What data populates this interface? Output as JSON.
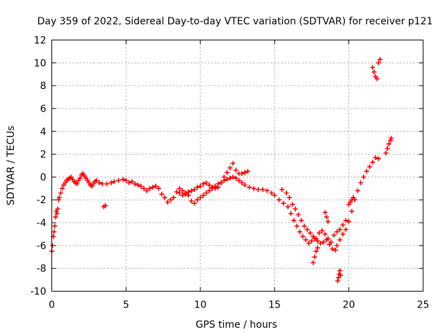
{
  "chart_data": {
    "type": "scatter",
    "title": "Day 359 of 2022, Sidereal Day-to-day VTEC variation (SDTVAR) for receiver p121",
    "xlabel": "GPS time / hours",
    "ylabel": "SDTVAR / TECUs",
    "xlim": [
      0,
      25
    ],
    "ylim": [
      -10,
      12
    ],
    "xticks": [
      0,
      5,
      10,
      15,
      20,
      25
    ],
    "yticks": [
      -10,
      -8,
      -6,
      -4,
      -2,
      0,
      2,
      4,
      6,
      8,
      10,
      12
    ],
    "grid": true,
    "marker": "+",
    "color": "#ff0000",
    "series": [
      {
        "name": "main trace",
        "points": [
          [
            0.0,
            -6.5
          ],
          [
            0.05,
            -6.0
          ],
          [
            0.1,
            -5.2
          ],
          [
            0.15,
            -4.8
          ],
          [
            0.2,
            -4.3
          ],
          [
            0.25,
            -3.5
          ],
          [
            0.3,
            -3.0
          ],
          [
            0.35,
            -3.2
          ],
          [
            0.4,
            -2.8
          ],
          [
            0.45,
            -2.0
          ],
          [
            0.5,
            -1.8
          ],
          [
            0.6,
            -1.4
          ],
          [
            0.7,
            -1.0
          ],
          [
            0.8,
            -0.7
          ],
          [
            0.9,
            -0.5
          ],
          [
            1.0,
            -0.3
          ],
          [
            1.1,
            -0.2
          ],
          [
            1.2,
            -0.1
          ],
          [
            1.3,
            0.0
          ],
          [
            1.4,
            -0.2
          ],
          [
            1.5,
            -0.4
          ],
          [
            1.6,
            -0.5
          ],
          [
            1.7,
            -0.6
          ],
          [
            1.8,
            -0.3
          ],
          [
            1.9,
            -0.1
          ],
          [
            2.0,
            0.2
          ],
          [
            2.1,
            0.3
          ],
          [
            2.2,
            0.1
          ],
          [
            2.3,
            -0.1
          ],
          [
            2.4,
            -0.3
          ],
          [
            2.5,
            -0.5
          ],
          [
            2.6,
            -0.7
          ],
          [
            2.7,
            -0.8
          ],
          [
            2.8,
            -0.6
          ],
          [
            2.9,
            -0.4
          ],
          [
            3.0,
            -0.3
          ],
          [
            3.2,
            -0.5
          ],
          [
            3.4,
            -0.6
          ],
          [
            3.5,
            -2.6
          ],
          [
            3.6,
            -2.5
          ],
          [
            3.7,
            -0.6
          ],
          [
            4.0,
            -0.5
          ],
          [
            4.2,
            -0.4
          ],
          [
            4.5,
            -0.3
          ],
          [
            4.8,
            -0.2
          ],
          [
            5.0,
            -0.3
          ],
          [
            5.2,
            -0.5
          ],
          [
            5.4,
            -0.4
          ],
          [
            5.6,
            -0.6
          ],
          [
            5.8,
            -0.7
          ],
          [
            6.0,
            -0.8
          ],
          [
            6.2,
            -1.0
          ],
          [
            6.4,
            -1.2
          ],
          [
            6.6,
            -1.0
          ],
          [
            6.8,
            -0.9
          ],
          [
            7.0,
            -0.8
          ],
          [
            7.2,
            -1.0
          ],
          [
            7.4,
            -1.5
          ],
          [
            7.6,
            -1.8
          ],
          [
            7.8,
            -2.2
          ],
          [
            8.0,
            -2.0
          ],
          [
            8.2,
            -1.8
          ],
          [
            8.4,
            -1.3
          ],
          [
            8.6,
            -1.0
          ],
          [
            8.8,
            -1.2
          ],
          [
            9.0,
            -1.4
          ],
          [
            9.2,
            -1.6
          ],
          [
            9.4,
            -2.1
          ],
          [
            9.6,
            -2.3
          ],
          [
            9.8,
            -2.0
          ],
          [
            10.0,
            -1.8
          ],
          [
            10.2,
            -1.6
          ],
          [
            10.4,
            -1.4
          ],
          [
            10.6,
            -1.2
          ],
          [
            10.8,
            -1.0
          ],
          [
            11.0,
            -0.8
          ],
          [
            11.2,
            -0.6
          ],
          [
            11.4,
            -0.5
          ],
          [
            11.6,
            -0.3
          ],
          [
            11.8,
            -0.2
          ],
          [
            12.0,
            -0.1
          ],
          [
            12.2,
            0.0
          ],
          [
            12.4,
            -0.1
          ],
          [
            12.6,
            -0.3
          ],
          [
            12.8,
            -0.5
          ],
          [
            13.0,
            -0.7
          ],
          [
            13.3,
            -0.9
          ],
          [
            13.6,
            -1.0
          ],
          [
            13.9,
            -1.1
          ],
          [
            14.2,
            -1.1
          ],
          [
            14.5,
            -1.2
          ],
          [
            14.8,
            -1.4
          ],
          [
            15.0,
            -1.6
          ],
          [
            15.3,
            -2.0
          ],
          [
            15.6,
            -2.3
          ],
          [
            15.9,
            -2.6
          ],
          [
            16.1,
            -3.2
          ],
          [
            16.3,
            -3.8
          ],
          [
            16.5,
            -4.3
          ],
          [
            16.7,
            -4.8
          ],
          [
            16.9,
            -5.2
          ],
          [
            17.1,
            -5.5
          ],
          [
            17.3,
            -5.8
          ],
          [
            17.5,
            -5.6
          ],
          [
            17.7,
            -5.4
          ],
          [
            17.9,
            -5.6
          ],
          [
            18.1,
            -5.8
          ],
          [
            18.3,
            -5.7
          ],
          [
            18.5,
            -5.5
          ],
          [
            18.7,
            -5.9
          ],
          [
            18.9,
            -6.3
          ],
          [
            19.1,
            -6.4
          ],
          [
            19.2,
            -6.0
          ],
          [
            19.4,
            -5.5
          ],
          [
            19.6,
            -5.0
          ],
          [
            19.8,
            -4.6
          ],
          [
            20.0,
            -3.9
          ],
          [
            20.2,
            -3.0
          ],
          [
            20.4,
            -2.0
          ],
          [
            20.6,
            -1.2
          ],
          [
            20.8,
            -0.5
          ],
          [
            21.0,
            0.0
          ],
          [
            21.2,
            0.5
          ],
          [
            21.4,
            0.9
          ],
          [
            21.6,
            1.3
          ],
          [
            21.8,
            1.7
          ],
          [
            22.0,
            1.6
          ]
        ]
      },
      {
        "name": "upper branch",
        "points": [
          [
            8.6,
            -1.4
          ],
          [
            8.8,
            -1.6
          ],
          [
            9.0,
            -1.5
          ],
          [
            9.2,
            -1.3
          ],
          [
            9.4,
            -1.2
          ],
          [
            9.6,
            -1.1
          ],
          [
            9.8,
            -0.9
          ],
          [
            10.0,
            -0.8
          ],
          [
            10.2,
            -0.6
          ],
          [
            10.4,
            -0.5
          ],
          [
            10.6,
            -0.7
          ],
          [
            10.8,
            -0.9
          ],
          [
            11.0,
            -1.0
          ],
          [
            11.2,
            -0.9
          ],
          [
            11.4,
            -0.5
          ],
          [
            11.6,
            0.0
          ],
          [
            11.8,
            0.4
          ],
          [
            12.0,
            0.8
          ],
          [
            12.2,
            1.2
          ],
          [
            12.4,
            0.6
          ],
          [
            12.6,
            0.3
          ],
          [
            12.8,
            0.3
          ],
          [
            13.0,
            0.4
          ],
          [
            13.2,
            0.5
          ]
        ]
      },
      {
        "name": "second descent",
        "points": [
          [
            15.5,
            -1.1
          ],
          [
            15.8,
            -1.4
          ],
          [
            16.0,
            -1.8
          ],
          [
            16.2,
            -2.4
          ],
          [
            16.4,
            -2.8
          ],
          [
            16.6,
            -3.3
          ],
          [
            16.8,
            -3.8
          ],
          [
            17.0,
            -4.3
          ],
          [
            17.2,
            -4.6
          ],
          [
            17.4,
            -4.9
          ],
          [
            17.6,
            -5.2
          ],
          [
            17.8,
            -5.4
          ],
          [
            18.0,
            -4.9
          ],
          [
            18.2,
            -4.7
          ],
          [
            18.4,
            -5.0
          ],
          [
            18.6,
            -5.4
          ],
          [
            18.8,
            -5.7
          ],
          [
            19.0,
            -5.1
          ],
          [
            19.2,
            -4.8
          ],
          [
            19.4,
            -4.6
          ],
          [
            19.6,
            -4.2
          ],
          [
            19.8,
            -3.8
          ]
        ]
      },
      {
        "name": "isolated segments",
        "points": [
          [
            17.6,
            -7.5
          ],
          [
            17.7,
            -7.0
          ],
          [
            17.8,
            -6.5
          ],
          [
            17.9,
            -6.2
          ],
          [
            18.4,
            -3.1
          ],
          [
            18.5,
            -3.5
          ],
          [
            18.6,
            -3.9
          ],
          [
            19.25,
            -9.1
          ],
          [
            19.3,
            -8.8
          ],
          [
            19.35,
            -8.5
          ],
          [
            19.4,
            -8.2
          ],
          [
            19.45,
            -8.6
          ],
          [
            20.0,
            -2.4
          ],
          [
            20.1,
            -2.2
          ],
          [
            20.2,
            -2.0
          ],
          [
            20.3,
            -1.8
          ],
          [
            21.6,
            9.6
          ],
          [
            21.7,
            9.2
          ],
          [
            21.8,
            8.8
          ],
          [
            21.9,
            8.6
          ],
          [
            22.0,
            10.0
          ],
          [
            22.1,
            10.3
          ],
          [
            22.5,
            2.1
          ],
          [
            22.6,
            2.5
          ],
          [
            22.7,
            2.9
          ],
          [
            22.8,
            3.2
          ],
          [
            22.85,
            3.4
          ]
        ]
      }
    ]
  }
}
